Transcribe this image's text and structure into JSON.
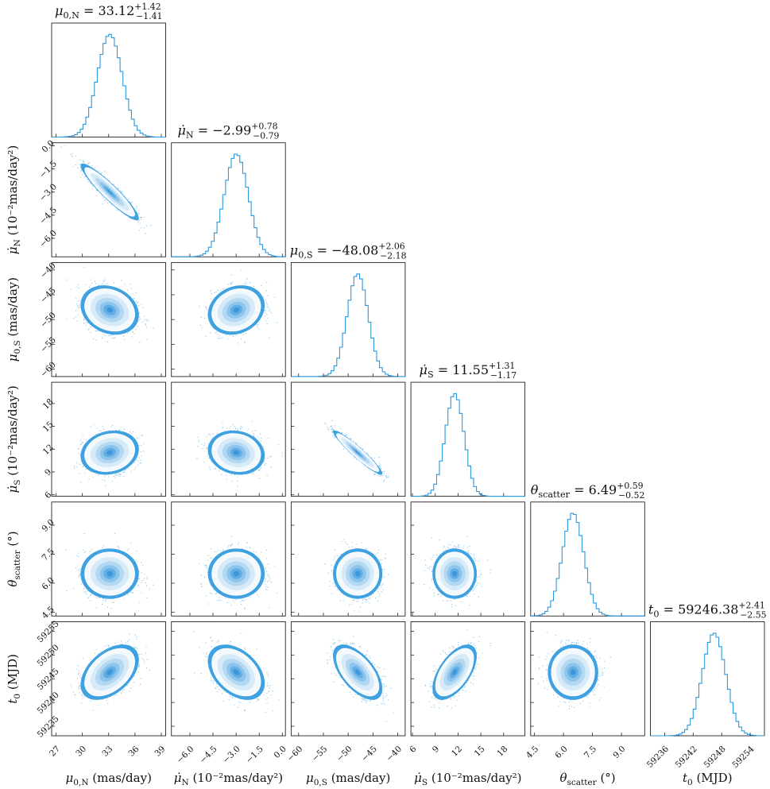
{
  "colors": {
    "accent": "#2b98dd",
    "contour_levels": [
      "#f4f9fd",
      "#d6eaf8",
      "#b3d8f2",
      "#8cc4ec",
      "#62ade3",
      "#3b97db"
    ],
    "axes": "#111111"
  },
  "chart_data": {
    "type": "corner",
    "params": [
      {
        "id": "mu0N",
        "title": {
          "pre": "μ",
          "sub": "0,N",
          "val": " = 33.12",
          "plus": "+1.42",
          "minus": "−1.41"
        },
        "label": {
          "pre": "μ",
          "sub": "0,N",
          "unit": " (mas/day)"
        },
        "median": 33.12,
        "sigma": 1.415,
        "range": [
          26.5,
          39.5
        ],
        "ticks": [
          27,
          30,
          33,
          36,
          39
        ],
        "tick_labels": [
          "27",
          "30",
          "33",
          "36",
          "39"
        ]
      },
      {
        "id": "muNdot",
        "title": {
          "pre": "μ̇",
          "sub": "N",
          "val": " = −2.99",
          "plus": "+0.78",
          "minus": "−0.79"
        },
        "label": {
          "pre": "μ̇",
          "sub": "N",
          "unit": " (10⁻²mas/day²)"
        },
        "median": -2.99,
        "sigma": 0.785,
        "range": [
          -7.2,
          0.2
        ],
        "ticks": [
          -6.0,
          -4.5,
          -3.0,
          -1.5,
          0.0
        ],
        "tick_labels": [
          "−6.0",
          "−4.5",
          "−3.0",
          "−1.5",
          "0.0"
        ]
      },
      {
        "id": "mu0S",
        "title": {
          "pre": "μ",
          "sub": "0,S",
          "val": " = −48.08",
          "plus": "+2.06",
          "minus": "−2.18"
        },
        "label": {
          "pre": "μ",
          "sub": "0,S",
          "unit": " (mas/day)"
        },
        "median": -48.08,
        "sigma": 2.12,
        "range": [
          -61.5,
          -38.5
        ],
        "ticks": [
          -60,
          -55,
          -50,
          -45,
          -40
        ],
        "tick_labels": [
          "−60",
          "−55",
          "−50",
          "−45",
          "−40"
        ]
      },
      {
        "id": "muSdot",
        "title": {
          "pre": "μ̇",
          "sub": "S",
          "val": " = 11.55",
          "plus": "+1.31",
          "minus": "−1.17"
        },
        "label": {
          "pre": "μ̇",
          "sub": "S",
          "unit": " (10⁻²mas/day²)"
        },
        "median": 11.55,
        "sigma": 1.24,
        "range": [
          5.8,
          20.8
        ],
        "ticks": [
          6,
          9,
          12,
          15,
          18
        ],
        "tick_labels": [
          "6",
          "9",
          "12",
          "15",
          "18"
        ]
      },
      {
        "id": "thetascatter",
        "title": {
          "pre": "θ",
          "sub": "scatter",
          "val": " = 6.49",
          "plus": "+0.59",
          "minus": "−0.52"
        },
        "label": {
          "pre": "θ",
          "sub": "scatter",
          "unit": " (°)"
        },
        "median": 6.49,
        "sigma": 0.555,
        "range": [
          4.3,
          10.2
        ],
        "ticks": [
          4.5,
          6.0,
          7.5,
          9.0
        ],
        "tick_labels": [
          "4.5",
          "6.0",
          "7.5",
          "9.0"
        ]
      },
      {
        "id": "t0",
        "title": {
          "pre": "t",
          "sub": "0",
          "val": " = 59246.38",
          "plus": "+2.41",
          "minus": "−2.55"
        },
        "label": {
          "pre": "t",
          "sub": "0",
          "unit": " (MJD)"
        },
        "median": 59246.38,
        "sigma": 2.48,
        "range": [
          59233.0,
          59257.0
        ],
        "ticks": [
          59236,
          59242,
          59248,
          59254
        ],
        "tick_labels": [
          "59236",
          "59242",
          "59248",
          "59254"
        ],
        "y_ticks": [
          59235,
          59240,
          59245,
          59250,
          59255
        ],
        "y_tick_labels": [
          "59235",
          "59240",
          "59245",
          "59250",
          "59255"
        ]
      }
    ],
    "correlations": [
      {
        "pair": [
          "mu0N",
          "muNdot"
        ],
        "rho": -0.93
      },
      {
        "pair": [
          "mu0N",
          "mu0S"
        ],
        "rho": -0.2
      },
      {
        "pair": [
          "muNdot",
          "mu0S"
        ],
        "rho": 0.18
      },
      {
        "pair": [
          "mu0N",
          "muSdot"
        ],
        "rho": 0.15
      },
      {
        "pair": [
          "muNdot",
          "muSdot"
        ],
        "rho": -0.12
      },
      {
        "pair": [
          "mu0S",
          "muSdot"
        ],
        "rho": -0.95
      },
      {
        "pair": [
          "mu0N",
          "thetascatter"
        ],
        "rho": 0.0
      },
      {
        "pair": [
          "muNdot",
          "thetascatter"
        ],
        "rho": 0.0
      },
      {
        "pair": [
          "mu0S",
          "thetascatter"
        ],
        "rho": 0.0
      },
      {
        "pair": [
          "muSdot",
          "thetascatter"
        ],
        "rho": 0.0
      },
      {
        "pair": [
          "mu0N",
          "t0"
        ],
        "rho": 0.45
      },
      {
        "pair": [
          "muNdot",
          "t0"
        ],
        "rho": -0.4
      },
      {
        "pair": [
          "mu0S",
          "t0"
        ],
        "rho": -0.6
      },
      {
        "pair": [
          "muSdot",
          "t0"
        ],
        "rho": 0.58
      },
      {
        "pair": [
          "thetascatter",
          "t0"
        ],
        "rho": 0.0
      }
    ],
    "histogram": {
      "bins": 40,
      "style": "step"
    },
    "contour_sigma_levels": [
      0.5,
      1.0,
      1.5,
      2.0
    ]
  }
}
